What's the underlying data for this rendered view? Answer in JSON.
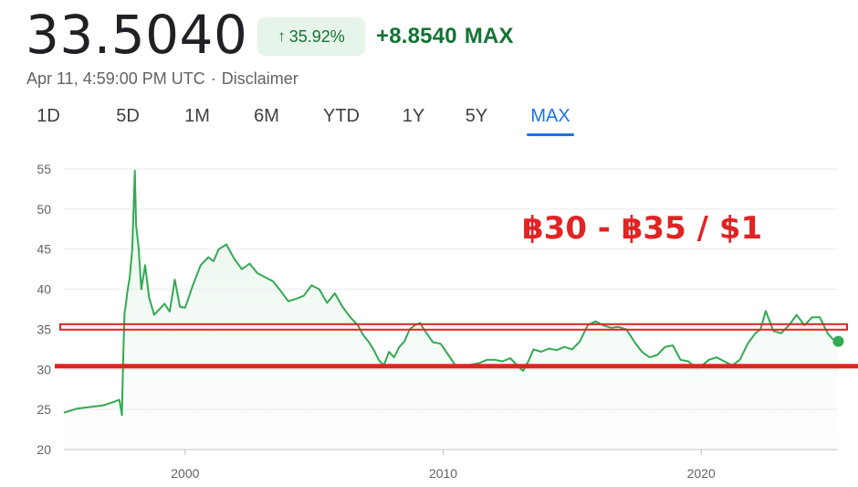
{
  "quote": {
    "price": "33.5040",
    "change_pct": "35.92%",
    "change_abs": "+8.8540",
    "range_label": "MAX",
    "timestamp": "Apr 11, 4:59:00 PM UTC",
    "disclaimer": "Disclaimer",
    "up_arrow_icon": "arrow-up-icon"
  },
  "tabs": [
    {
      "label": "1D",
      "active": false
    },
    {
      "label": "5D",
      "active": false
    },
    {
      "label": "1M",
      "active": false
    },
    {
      "label": "6M",
      "active": false
    },
    {
      "label": "YTD",
      "active": false
    },
    {
      "label": "1Y",
      "active": false
    },
    {
      "label": "5Y",
      "active": false
    },
    {
      "label": "MAX",
      "active": true
    }
  ],
  "colors": {
    "line": "#34a853",
    "fill": "#e6f4ea",
    "annotation": "#e02424",
    "grid": "#e8eaed",
    "active_tab": "#1a73e8",
    "positive": "#137333"
  },
  "chart_data": {
    "type": "line",
    "title": "",
    "xlabel": "",
    "ylabel": "",
    "ylim": [
      20,
      55
    ],
    "yticks": [
      20,
      25,
      30,
      35,
      40,
      45,
      50,
      55
    ],
    "xticks": [
      2000,
      2010,
      2020
    ],
    "xlim": [
      1995.3,
      2025.3
    ],
    "grid": "horizontal",
    "legend": "none",
    "annotation": "฿30 -  ฿35 / $1",
    "reference_lines": [
      35.3,
      30.4
    ],
    "last_point": {
      "x": 2025.28,
      "y": 33.5
    },
    "series": [
      {
        "x": [
          1995.3,
          1995.8,
          1996.3,
          1996.8,
          1997.2,
          1997.45,
          1997.55,
          1997.6,
          1997.65,
          1997.7,
          1997.75,
          1997.85,
          1997.95,
          1998.05,
          1998.1,
          1998.2,
          1998.3,
          1998.45,
          1998.6,
          1998.8,
          1999.0,
          1999.2,
          1999.4,
          1999.6,
          1999.8,
          2000.0,
          2000.3,
          2000.6,
          2000.9,
          2001.1,
          2001.3,
          2001.6,
          2001.9,
          2002.2,
          2002.5,
          2002.8,
          2003.1,
          2003.4,
          2003.7,
          2004.0,
          2004.3,
          2004.6,
          2004.9,
          2005.2,
          2005.5,
          2005.8,
          2006.1,
          2006.4,
          2006.7,
          2006.9,
          2007.1,
          2007.3,
          2007.5,
          2007.7,
          2007.9,
          2008.1,
          2008.3,
          2008.5,
          2008.7,
          2008.9,
          2009.1,
          2009.3,
          2009.6,
          2009.9,
          2010.2,
          2010.5,
          2010.8,
          2011.1,
          2011.4,
          2011.7,
          2012.0,
          2012.3,
          2012.6,
          2012.9,
          2013.1,
          2013.3,
          2013.5,
          2013.8,
          2014.1,
          2014.4,
          2014.7,
          2015.0,
          2015.3,
          2015.6,
          2015.9,
          2016.2,
          2016.5,
          2016.8,
          2017.1,
          2017.4,
          2017.7,
          2018.0,
          2018.3,
          2018.6,
          2018.9,
          2019.2,
          2019.5,
          2019.8,
          2020.0,
          2020.3,
          2020.6,
          2020.9,
          2021.2,
          2021.5,
          2021.8,
          2022.1,
          2022.3,
          2022.5,
          2022.8,
          2023.1,
          2023.4,
          2023.7,
          2024.0,
          2024.3,
          2024.6,
          2024.9,
          2025.1,
          2025.28
        ],
        "y": [
          24.6,
          25.1,
          25.3,
          25.5,
          25.9,
          26.2,
          24.3,
          31.5,
          37.0,
          38.0,
          39.5,
          41.5,
          45.0,
          54.8,
          48.0,
          45.0,
          40.0,
          43.0,
          39.0,
          36.8,
          37.5,
          38.2,
          37.2,
          41.2,
          37.8,
          37.7,
          40.5,
          43.0,
          44.0,
          43.5,
          45.0,
          45.6,
          43.8,
          42.5,
          43.2,
          42.0,
          41.5,
          41.0,
          39.8,
          38.5,
          38.8,
          39.2,
          40.5,
          40.0,
          38.3,
          39.5,
          37.8,
          36.5,
          35.5,
          34.3,
          33.5,
          32.5,
          31.2,
          30.5,
          32.2,
          31.5,
          32.8,
          33.5,
          35.0,
          35.5,
          35.8,
          34.8,
          33.4,
          33.2,
          31.8,
          30.4,
          30.3,
          30.6,
          30.8,
          31.2,
          31.2,
          31.0,
          31.4,
          30.4,
          29.8,
          31.0,
          32.5,
          32.2,
          32.6,
          32.4,
          32.8,
          32.5,
          33.5,
          35.5,
          36.0,
          35.5,
          35.2,
          35.3,
          35.0,
          33.5,
          32.2,
          31.5,
          31.8,
          32.8,
          33.0,
          31.2,
          31.0,
          30.2,
          30.4,
          31.2,
          31.5,
          31.0,
          30.5,
          31.2,
          33.2,
          34.5,
          35.0,
          37.3,
          34.8,
          34.5,
          35.5,
          36.8,
          35.5,
          36.5,
          36.5,
          34.5,
          33.8,
          33.5
        ]
      }
    ]
  }
}
